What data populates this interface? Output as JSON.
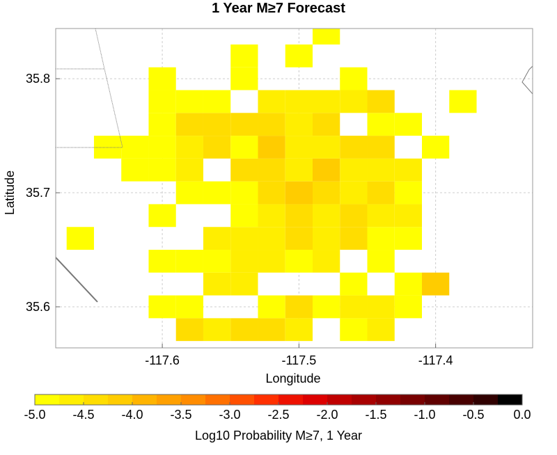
{
  "chart_data": {
    "type": "heatmap",
    "title": "1 Year M≥7 Forecast",
    "x_label": "Longitude",
    "y_label": "Latitude",
    "x": [
      -117.66,
      -117.64,
      -117.62,
      -117.6,
      -117.58,
      -117.56,
      -117.54,
      -117.52,
      -117.5,
      -117.48,
      -117.46,
      -117.44,
      -117.42,
      -117.4,
      -117.38
    ],
    "y": [
      35.58,
      35.6,
      35.62,
      35.64,
      35.66,
      35.68,
      35.7,
      35.72,
      35.74,
      35.76,
      35.78,
      35.8,
      35.82,
      35.84
    ],
    "values": [
      [
        null,
        null,
        null,
        null,
        -4.5,
        -4.7,
        -4.5,
        -4.5,
        -4.7,
        null,
        -4.9,
        -4.6,
        null,
        null,
        null
      ],
      [
        null,
        null,
        null,
        -4.9,
        -4.9,
        null,
        null,
        -4.9,
        -4.4,
        -4.9,
        -4.6,
        -4.6,
        -4.9,
        null,
        null
      ],
      [
        null,
        null,
        null,
        null,
        null,
        -4.6,
        -4.6,
        null,
        null,
        null,
        -4.9,
        null,
        -4.9,
        -4.2,
        null
      ],
      [
        null,
        null,
        null,
        -4.9,
        -4.9,
        -4.9,
        -4.7,
        -4.7,
        -4.9,
        -4.6,
        null,
        -4.9,
        null,
        null,
        null
      ],
      [
        -4.9,
        null,
        null,
        null,
        null,
        -4.7,
        -4.7,
        -4.7,
        -4.4,
        -4.6,
        -4.4,
        -4.9,
        -4.9,
        null,
        null
      ],
      [
        null,
        null,
        null,
        -4.9,
        null,
        null,
        -4.9,
        -4.6,
        -4.4,
        -4.6,
        -4.4,
        -4.7,
        -4.7,
        null,
        null
      ],
      [
        null,
        null,
        null,
        null,
        -4.9,
        -4.9,
        -4.9,
        -4.4,
        -4.2,
        -4.4,
        -4.7,
        -4.4,
        -4.9,
        null,
        null
      ],
      [
        null,
        null,
        -4.9,
        -4.9,
        -4.6,
        null,
        -4.3,
        -4.3,
        -4.7,
        -4.2,
        -4.6,
        -4.6,
        -4.6,
        null,
        null
      ],
      [
        null,
        -4.9,
        -4.9,
        -4.9,
        -4.6,
        -4.4,
        -4.9,
        -4.2,
        -4.6,
        -4.7,
        -4.5,
        -4.5,
        null,
        -4.9,
        null
      ],
      [
        null,
        null,
        null,
        -4.9,
        -4.4,
        -4.4,
        -4.5,
        -4.3,
        -4.7,
        -4.4,
        null,
        -4.9,
        -4.9,
        null,
        null
      ],
      [
        null,
        null,
        null,
        -4.9,
        -4.9,
        -4.9,
        null,
        -4.7,
        -4.7,
        -4.7,
        -4.7,
        -4.4,
        null,
        null,
        -4.9
      ],
      [
        null,
        null,
        null,
        -4.9,
        null,
        null,
        -4.9,
        null,
        null,
        null,
        -4.9,
        null,
        null,
        null,
        null
      ],
      [
        null,
        null,
        null,
        null,
        null,
        null,
        -4.9,
        null,
        -4.9,
        null,
        null,
        null,
        null,
        null,
        null
      ],
      [
        null,
        null,
        null,
        null,
        null,
        null,
        null,
        null,
        null,
        -4.9,
        null,
        null,
        null,
        null,
        null
      ]
    ],
    "xlim": [
      -117.678,
      -117.329
    ],
    "ylim": [
      35.564,
      35.844
    ],
    "xticks": [
      -117.6,
      -117.5,
      -117.4
    ],
    "yticks": [
      35.6,
      35.7,
      35.8
    ],
    "grid": true,
    "colorbar_label": "Log10 Probability M≥7, 1 Year",
    "clim": [
      -5,
      0
    ],
    "colorbar_ticks": [
      {
        "value": -5,
        "label": "-5.0"
      },
      {
        "value": -4.5,
        "label": "-4.5"
      },
      {
        "value": -4,
        "label": "-4.0"
      },
      {
        "value": -3.5,
        "label": "-3.5"
      },
      {
        "value": -3,
        "label": "-3.0"
      },
      {
        "value": -2.5,
        "label": "-2.5"
      },
      {
        "value": -2,
        "label": "-2.0"
      },
      {
        "value": -1.5,
        "label": "-1.5"
      },
      {
        "value": -1,
        "label": "-1.0"
      },
      {
        "value": -0.5,
        "label": "-0.5"
      },
      {
        "value": 0,
        "label": "0.0"
      }
    ],
    "colorscale": [
      "#ffff00",
      "#ffee00",
      "#ffdd00",
      "#ffcc00",
      "#ffb400",
      "#ffa000",
      "#ff8c00",
      "#ff7000",
      "#ff5000",
      "#ff3000",
      "#ee1100",
      "#dd0000",
      "#c00000",
      "#a80000",
      "#900000",
      "#780000",
      "#600000",
      "#480000",
      "#300000",
      "#000000"
    ]
  }
}
